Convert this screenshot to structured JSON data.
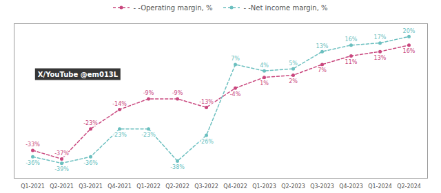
{
  "chart_data": {
    "type": "line",
    "categories": [
      "Q1-2021",
      "Q2-2021",
      "Q3-2021",
      "Q4-2021",
      "Q1-2022",
      "Q2-2022",
      "Q3-2022",
      "Q4-2022",
      "Q1-2023",
      "Q2-2023",
      "Q3-2023",
      "Q4-2023",
      "Q1-2024",
      "Q2-2024"
    ],
    "series": [
      {
        "name": "- -Operating margin, %",
        "color": "#c9477e",
        "line_style": "dashed",
        "marker": "circle",
        "values": [
          -33,
          -37,
          -23,
          -14,
          -9,
          -9,
          -13,
          -4,
          1,
          2,
          7,
          11,
          13,
          16
        ],
        "value_labels": [
          "-33%",
          "-37%",
          "-23%",
          "-14%",
          "-9%",
          "-9%",
          "-13%",
          "-4%",
          "1%",
          "2%",
          "7%",
          "11%",
          "13%",
          "16%"
        ]
      },
      {
        "name": "- -Net income margin, %",
        "color": "#6bbfbf",
        "line_style": "dashed",
        "marker": "circle",
        "values": [
          -36,
          -39,
          -36,
          -23,
          -23,
          -38,
          -26,
          7,
          4,
          5,
          13,
          16,
          17,
          20
        ],
        "value_labels": [
          "-36%",
          "-39%",
          "-36%",
          "-23%",
          "-23%",
          "-38%",
          "-26%",
          "7%",
          "4%",
          "5%",
          "13%",
          "16%",
          "17%",
          "20%"
        ]
      }
    ],
    "ylim": [
      -46,
      26
    ],
    "tick_labels": "x",
    "grid": false,
    "legend": "top",
    "data_labels": true,
    "annotations": [
      "X/YouTube @em013L"
    ]
  }
}
